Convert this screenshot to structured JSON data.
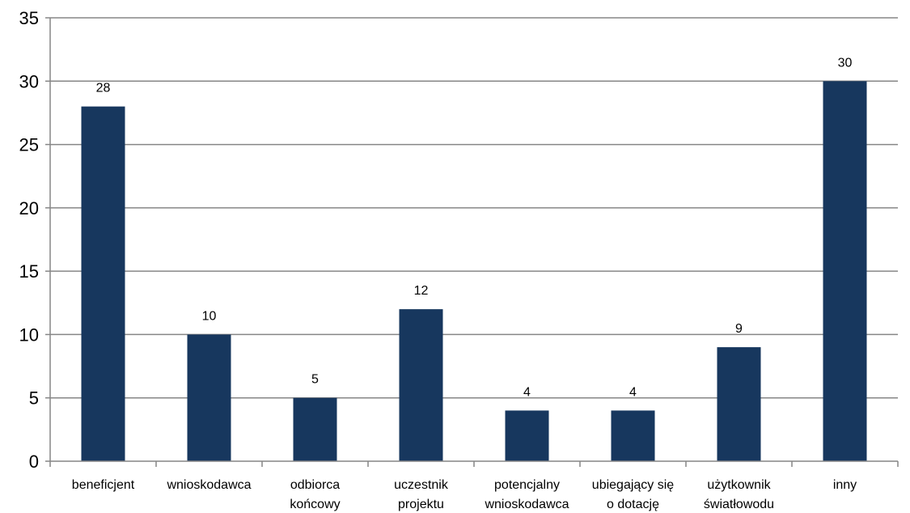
{
  "chart_data": {
    "type": "bar",
    "categories": [
      "beneficjent",
      "wnioskodawca",
      "odbiorca końcowy",
      "uczestnik projektu",
      "potencjalny wnioskodawca",
      "ubiegający się o dotację",
      "użytkownik światłowodu",
      "inny"
    ],
    "category_lines": [
      [
        "beneficjent"
      ],
      [
        "wnioskodawca"
      ],
      [
        "odbiorca",
        "końcowy"
      ],
      [
        "uczestnik",
        "projektu"
      ],
      [
        "potencjalny",
        "wnioskodawca"
      ],
      [
        "ubiegający się",
        "o dotację"
      ],
      [
        "użytkownik",
        "światłowodu"
      ],
      [
        "inny"
      ]
    ],
    "values": [
      28,
      10,
      5,
      12,
      4,
      4,
      9,
      30
    ],
    "ylim": [
      0,
      35
    ],
    "yticks": [
      0,
      5,
      10,
      15,
      20,
      25,
      30,
      35
    ],
    "grid": true,
    "data_labels": true,
    "bar_color": "#17375e",
    "grid_color": "#868686",
    "axis_color": "#868686"
  }
}
